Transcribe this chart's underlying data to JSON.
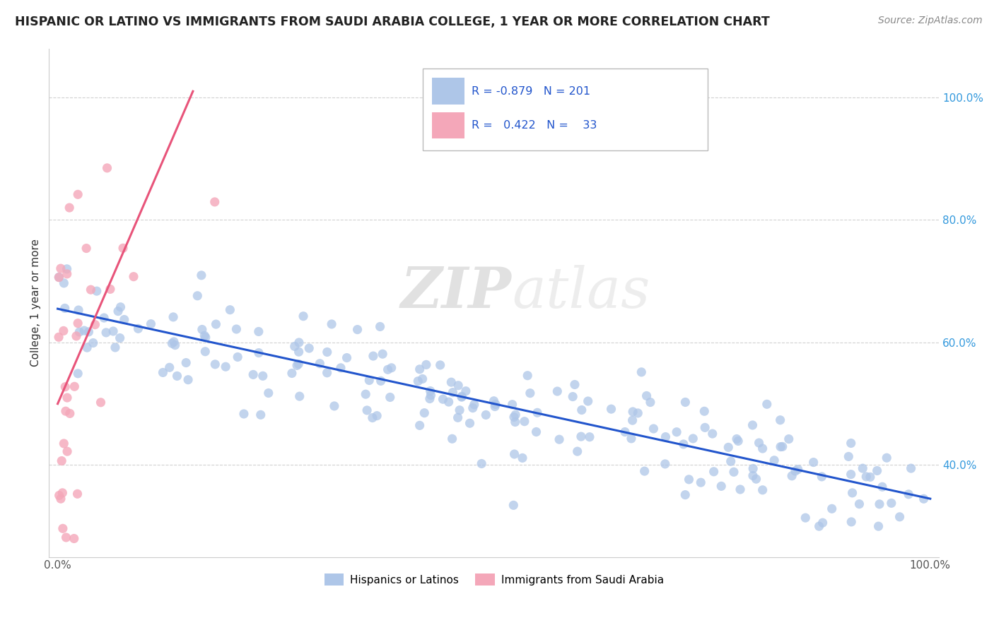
{
  "title": "HISPANIC OR LATINO VS IMMIGRANTS FROM SAUDI ARABIA COLLEGE, 1 YEAR OR MORE CORRELATION CHART",
  "source": "Source: ZipAtlas.com",
  "ylabel": "College, 1 year or more",
  "xlim": [
    -0.01,
    1.01
  ],
  "ylim": [
    0.25,
    1.08
  ],
  "xtick_vals": [
    0.0,
    0.2,
    0.4,
    0.6,
    0.8,
    1.0
  ],
  "ytick_vals": [
    0.4,
    0.6,
    0.8,
    1.0
  ],
  "blue_color": "#AEC6E8",
  "pink_color": "#F4A7B9",
  "blue_line_color": "#2255CC",
  "pink_line_color": "#E8547A",
  "watermark_zip": "ZIP",
  "watermark_atlas": "atlas",
  "legend_label_blue": "Hispanics or Latinos",
  "legend_label_pink": "Immigrants from Saudi Arabia",
  "blue_line_y0": 0.655,
  "blue_line_y1": 0.345,
  "pink_line_x0": 0.0,
  "pink_line_x1": 0.155,
  "pink_line_y0": 0.5,
  "pink_line_y1": 1.01
}
